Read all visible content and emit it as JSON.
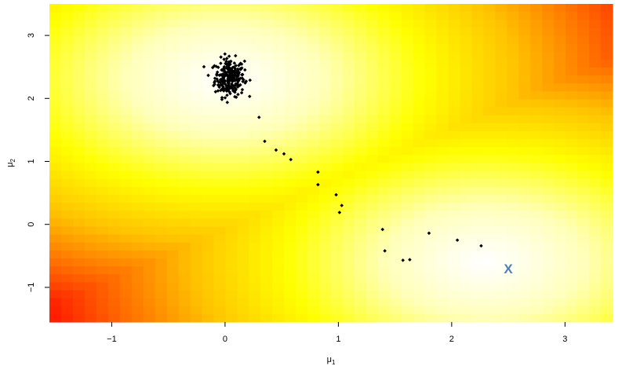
{
  "chart_data": {
    "type": "heatmap",
    "title": "",
    "xlabel": {
      "base": "μ",
      "sub": "1"
    },
    "ylabel": {
      "base": "μ",
      "sub": "2"
    },
    "xlim": [
      -1.55,
      3.42
    ],
    "ylim": [
      -1.55,
      3.5
    ],
    "xticks": [
      -1,
      0,
      1,
      2,
      3
    ],
    "yticks": [
      -1,
      0,
      1,
      2,
      3
    ],
    "xtick_labels": [
      "−1",
      "0",
      "1",
      "2",
      "3"
    ],
    "ytick_labels": [
      "−1",
      "0",
      "1",
      "2",
      "3"
    ],
    "grid": false,
    "legend": "none",
    "background": {
      "description_free": true,
      "modes": [
        [
          0.0,
          2.3
        ],
        [
          2.3,
          -0.6
        ]
      ],
      "colormap": [
        "#ffffff",
        "#ffffb8",
        "#ffff00",
        "#ffc000",
        "#ff6a00",
        "#ff2200"
      ]
    },
    "mcmc_points": [
      [
        0.3,
        1.7
      ],
      [
        0.35,
        1.32
      ],
      [
        0.45,
        1.18
      ],
      [
        0.52,
        1.12
      ],
      [
        0.58,
        1.03
      ],
      [
        0.82,
        0.83
      ],
      [
        0.82,
        0.63
      ],
      [
        0.98,
        0.47
      ],
      [
        1.03,
        0.3
      ],
      [
        1.01,
        0.19
      ],
      [
        1.39,
        -0.08
      ],
      [
        1.41,
        -0.42
      ],
      [
        1.57,
        -0.57
      ],
      [
        1.63,
        -0.56
      ],
      [
        1.8,
        -0.14
      ],
      [
        2.05,
        -0.25
      ],
      [
        2.26,
        -0.34
      ]
    ],
    "cluster": {
      "center": [
        0.04,
        2.33
      ],
      "count": 260
    },
    "marker": {
      "x": 2.5,
      "y": -0.7,
      "label": "X",
      "color": "#4f7fb8"
    }
  }
}
